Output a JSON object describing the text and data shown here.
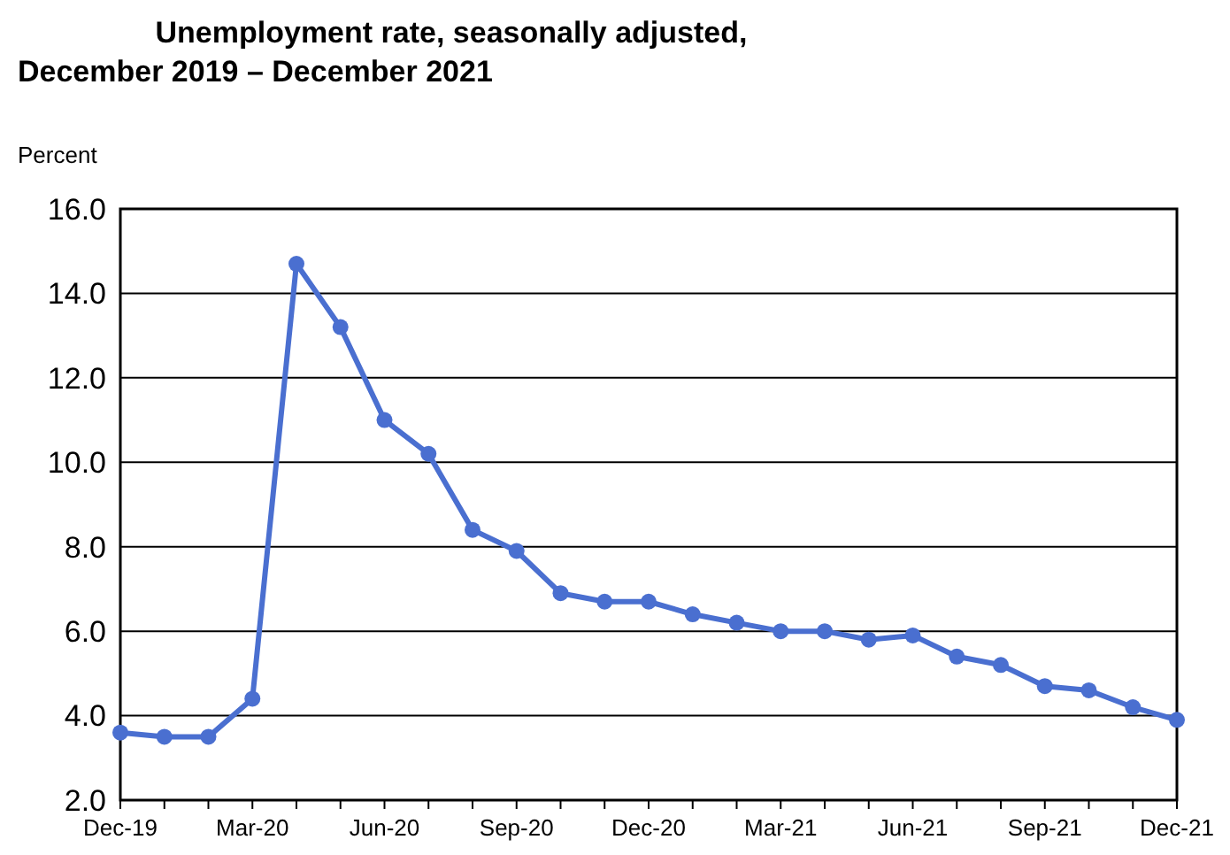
{
  "chart_data": {
    "type": "line",
    "title": "Unemployment rate, seasonally adjusted,\nDecember 2019 – December 2021",
    "ylabel": "Percent",
    "categories": [
      "Dec-19",
      null,
      null,
      "Mar-20",
      null,
      null,
      "Jun-20",
      null,
      null,
      "Sep-20",
      null,
      null,
      "Dec-20",
      null,
      null,
      "Mar-21",
      null,
      null,
      "Jun-21",
      null,
      null,
      "Sep-21",
      null,
      null,
      "Dec-21"
    ],
    "series": [
      {
        "color": "#4a6fd0",
        "values": [
          3.6,
          3.5,
          3.5,
          4.4,
          14.7,
          13.2,
          11.0,
          10.2,
          8.4,
          7.9,
          6.9,
          6.7,
          6.7,
          6.4,
          6.2,
          6.0,
          6.0,
          5.8,
          5.9,
          5.4,
          5.2,
          4.7,
          4.6,
          4.2,
          3.9
        ]
      }
    ],
    "ylim": [
      2,
      16
    ],
    "yticks": [
      {
        "value": 2,
        "label": "2.0"
      },
      {
        "value": 4,
        "label": "4.0"
      },
      {
        "value": 6,
        "label": "6.0"
      },
      {
        "value": 8,
        "label": "8.0"
      },
      {
        "value": 10,
        "label": "10.0"
      },
      {
        "value": 12,
        "label": "12.0"
      },
      {
        "value": 14,
        "label": "14.0"
      },
      {
        "value": 16,
        "label": "16.0"
      }
    ],
    "grid": "y",
    "marker": "circle",
    "line_style": "solid"
  }
}
